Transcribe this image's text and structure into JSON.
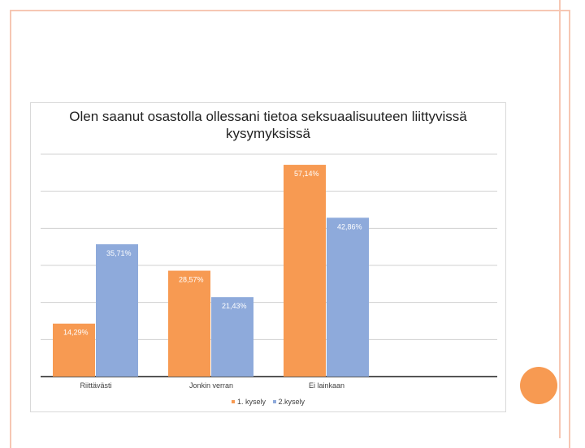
{
  "chart_data": {
    "type": "bar",
    "title": "Olen saanut osastolla ollessani tietoa seksuaalisuuteen liittyvissä kysymyksissä",
    "categories": [
      "Riittävästi",
      "Jonkin verran",
      "Ei lainkaan"
    ],
    "series": [
      {
        "name": "1. kysely",
        "values": [
          14.29,
          28.57,
          57.14
        ],
        "labels": [
          "14,29%",
          "28,57%",
          "57,14%"
        ],
        "color": "#f79a52"
      },
      {
        "name": "2.kysely",
        "values": [
          35.71,
          21.43,
          42.86
        ],
        "labels": [
          "35,71%",
          "21,43%",
          "42,86%"
        ],
        "color": "#8eaadb"
      }
    ],
    "ylim": [
      0,
      60
    ],
    "grid": true,
    "legend_position": "bottom"
  },
  "colors": {
    "border": "#f6c7b3",
    "accent_circle": "#f79a52"
  }
}
